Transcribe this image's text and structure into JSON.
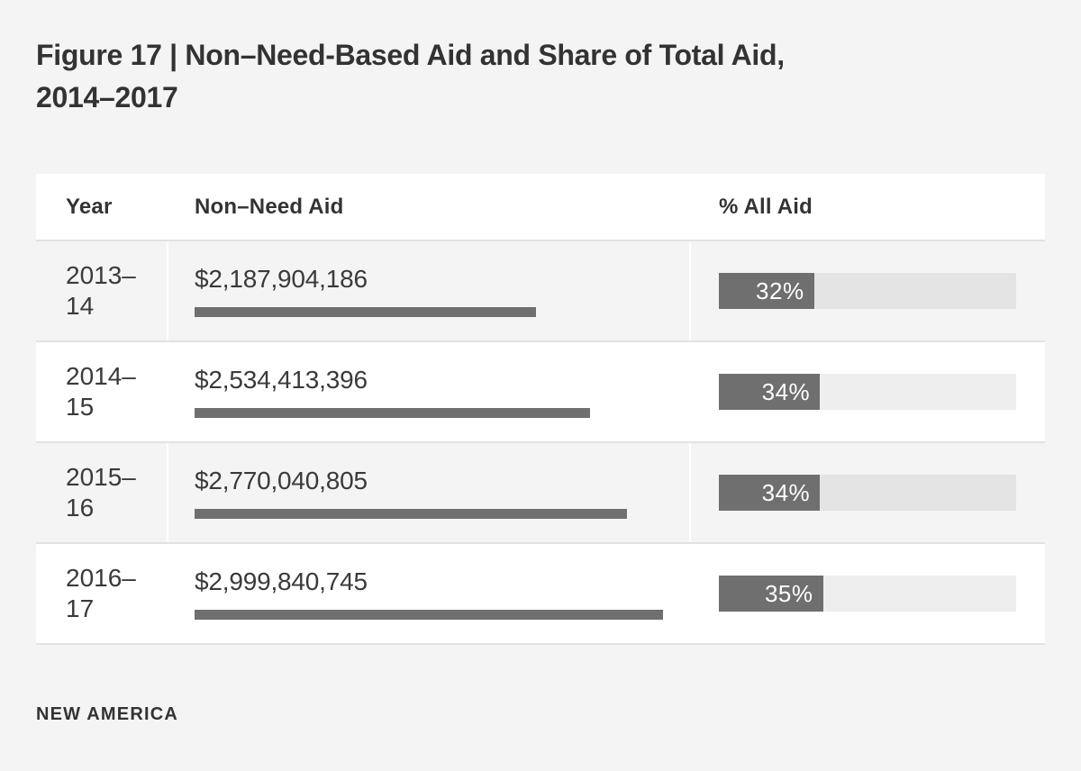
{
  "title": {
    "line1": "Figure 17 | Non–Need-Based Aid and Share of Total Aid,",
    "line2": "2014–2017"
  },
  "table": {
    "columns": {
      "year": "Year",
      "aid": "Non–Need Aid",
      "pct": "% All Aid"
    },
    "rows": [
      {
        "year_line1": "2013–",
        "year_line2": "14",
        "aid": "$2,187,904,186",
        "aid_value": 2187904186,
        "pct": 32,
        "pct_label": "32%"
      },
      {
        "year_line1": "2014–",
        "year_line2": "15",
        "aid": "$2,534,413,396",
        "aid_value": 2534413396,
        "pct": 34,
        "pct_label": "34%"
      },
      {
        "year_line1": "2015–",
        "year_line2": "16",
        "aid": "$2,770,040,805",
        "aid_value": 2770040805,
        "pct": 34,
        "pct_label": "34%"
      },
      {
        "year_line1": "2016–",
        "year_line2": "17",
        "aid": "$2,999,840,745",
        "aid_value": 2999840745,
        "pct": 35,
        "pct_label": "35%"
      }
    ],
    "max_aid_value": 2999840745
  },
  "footer": {
    "brand": "NEW AMERICA"
  },
  "colors": {
    "background": "#f4f4f4",
    "bar_fill": "#6f6f6f",
    "track_on_gray_row": "#e4e4e4",
    "track_on_white_row": "#eeeeee",
    "row_stripe": "#f4f4f4",
    "divider": "#e2e2e2",
    "title_text": "#333333",
    "body_text": "#3a3a3a",
    "pct_label_text": "#ffffff"
  },
  "chart_data": {
    "type": "table",
    "title": "Figure 17 | Non–Need-Based Aid and Share of Total Aid, 2014–2017",
    "columns": [
      "Year",
      "Non–Need Aid",
      "% All Aid"
    ],
    "categories": [
      "2013–14",
      "2014–15",
      "2015–16",
      "2016–17"
    ],
    "series": [
      {
        "name": "Non–Need Aid ($)",
        "values": [
          2187904186,
          2534413396,
          2770040805,
          2999840745
        ]
      },
      {
        "name": "% All Aid",
        "values": [
          32,
          34,
          34,
          35
        ]
      }
    ],
    "layout_hints": {
      "aid_bars_scaled_to_max_value": true,
      "pct_bars_scaled_0_to_100": true,
      "row_striping": "odd rows gray"
    },
    "source_label": "NEW AMERICA"
  }
}
